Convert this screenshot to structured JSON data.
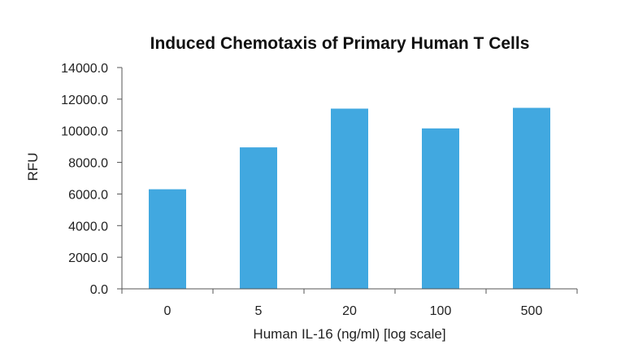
{
  "chart_data": {
    "type": "bar",
    "title": "Induced Chemotaxis of Primary Human T Cells",
    "xlabel": "Human IL-16 (ng/ml) [log scale]",
    "ylabel": "RFU",
    "categories": [
      "0",
      "5",
      "20",
      "100",
      "500"
    ],
    "values": [
      6300,
      8950,
      11400,
      10150,
      11450
    ],
    "ylim": [
      0,
      14000
    ],
    "yticks": [
      "0.0",
      "2000.0",
      "4000.0",
      "6000.0",
      "8000.0",
      "10000.0",
      "12000.0",
      "14000.0"
    ],
    "ytick_values": [
      0,
      2000,
      4000,
      6000,
      8000,
      10000,
      12000,
      14000
    ],
    "bar_color": "#41a8e0",
    "grid": false,
    "legend": "none"
  }
}
